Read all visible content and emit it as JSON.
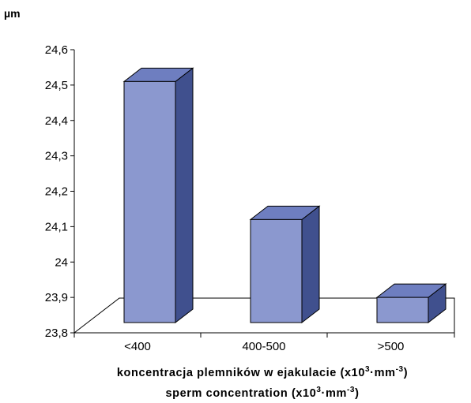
{
  "chart_data": {
    "type": "bar",
    "style": "3d-column",
    "unit_label": "µm",
    "categories": [
      "<400",
      "400-500",
      ">500"
    ],
    "values": [
      24.51,
      24.12,
      23.9
    ],
    "ylim": [
      23.8,
      24.6
    ],
    "yticks": [
      "24,6",
      "24,5",
      "24,4",
      "24,3",
      "24,2",
      "24,1",
      "24",
      "23,9",
      "23,8"
    ],
    "ytick_values": [
      24.6,
      24.5,
      24.4,
      24.3,
      24.2,
      24.1,
      24.0,
      23.9,
      23.8
    ],
    "xlabel_line1": {
      "text": "koncentracja plemników w ejakulacie (x10",
      "exp1": "3",
      "mid": "·mm",
      "exp2": "-3",
      "end": ")"
    },
    "xlabel_line2": {
      "text": "sperm concentration (x10",
      "exp1": "3",
      "mid": "·mm",
      "exp2": "-3",
      "end": ")"
    },
    "grid": false,
    "legend": "none",
    "colors": {
      "bar_front": "#8B98CF",
      "bar_top": "#6E7EC0",
      "bar_side": "#40508E",
      "stroke": "#000000"
    }
  }
}
